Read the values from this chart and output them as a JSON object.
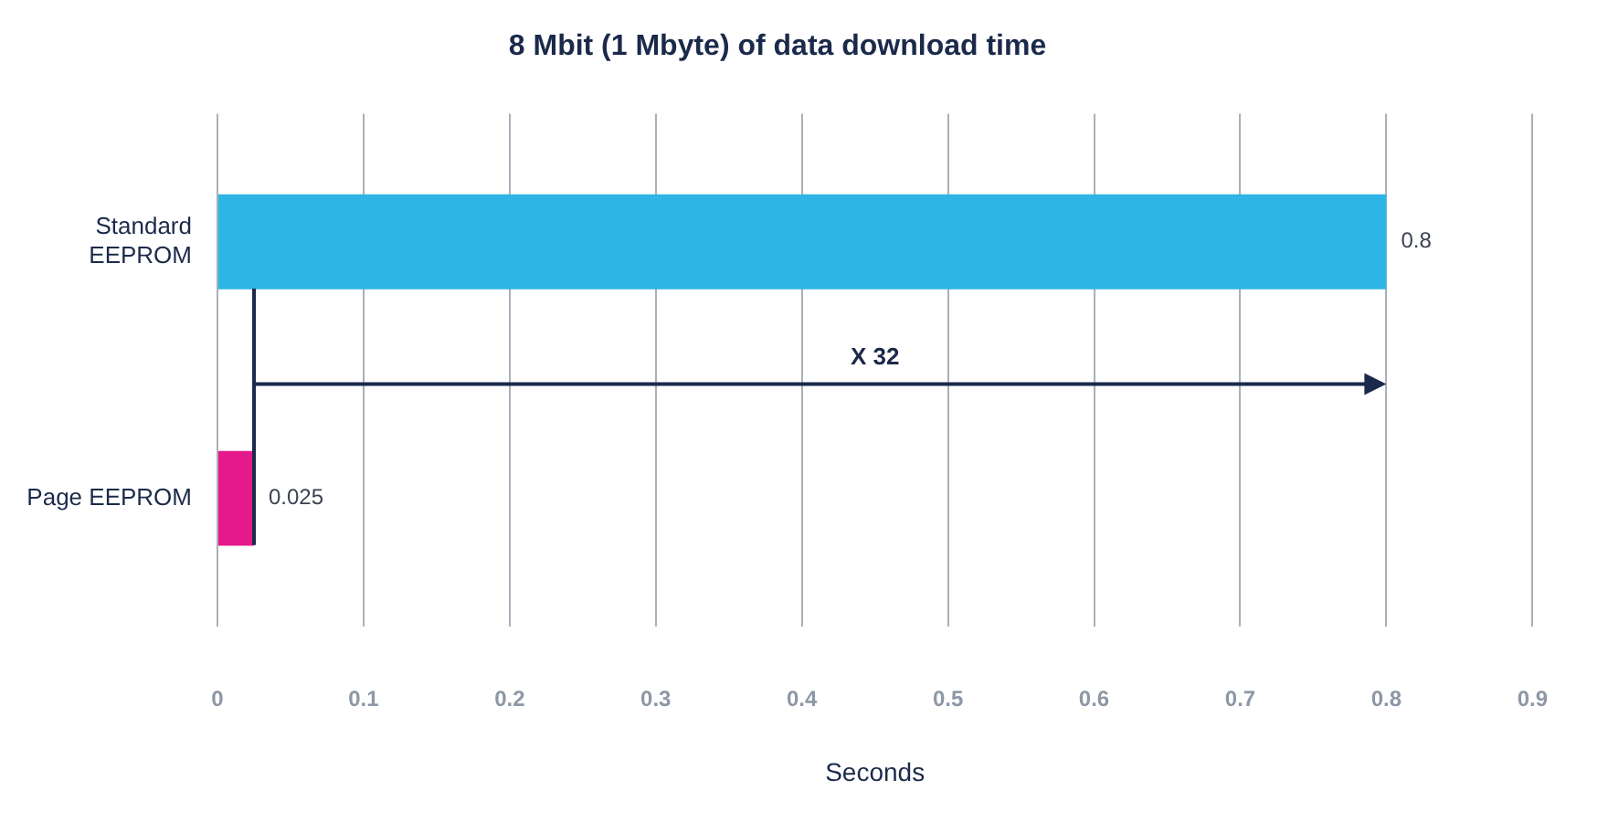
{
  "chart_data": {
    "type": "bar",
    "orientation": "horizontal",
    "title": "8 Mbit (1 Mbyte) of data download time",
    "xlabel": "Seconds",
    "categories": [
      "Standard EEPROM",
      "Page EEPROM"
    ],
    "values": [
      0.8,
      0.025
    ],
    "colors": [
      "#2db5e5",
      "#e6198a"
    ],
    "xlim": [
      0,
      0.9
    ],
    "xticks": [
      0,
      0.1,
      0.2,
      0.3,
      0.4,
      0.5,
      0.6,
      0.7,
      0.8,
      0.9
    ],
    "grid": "x",
    "legend": false,
    "data_labels": true,
    "annotations": [
      "X 32"
    ]
  }
}
